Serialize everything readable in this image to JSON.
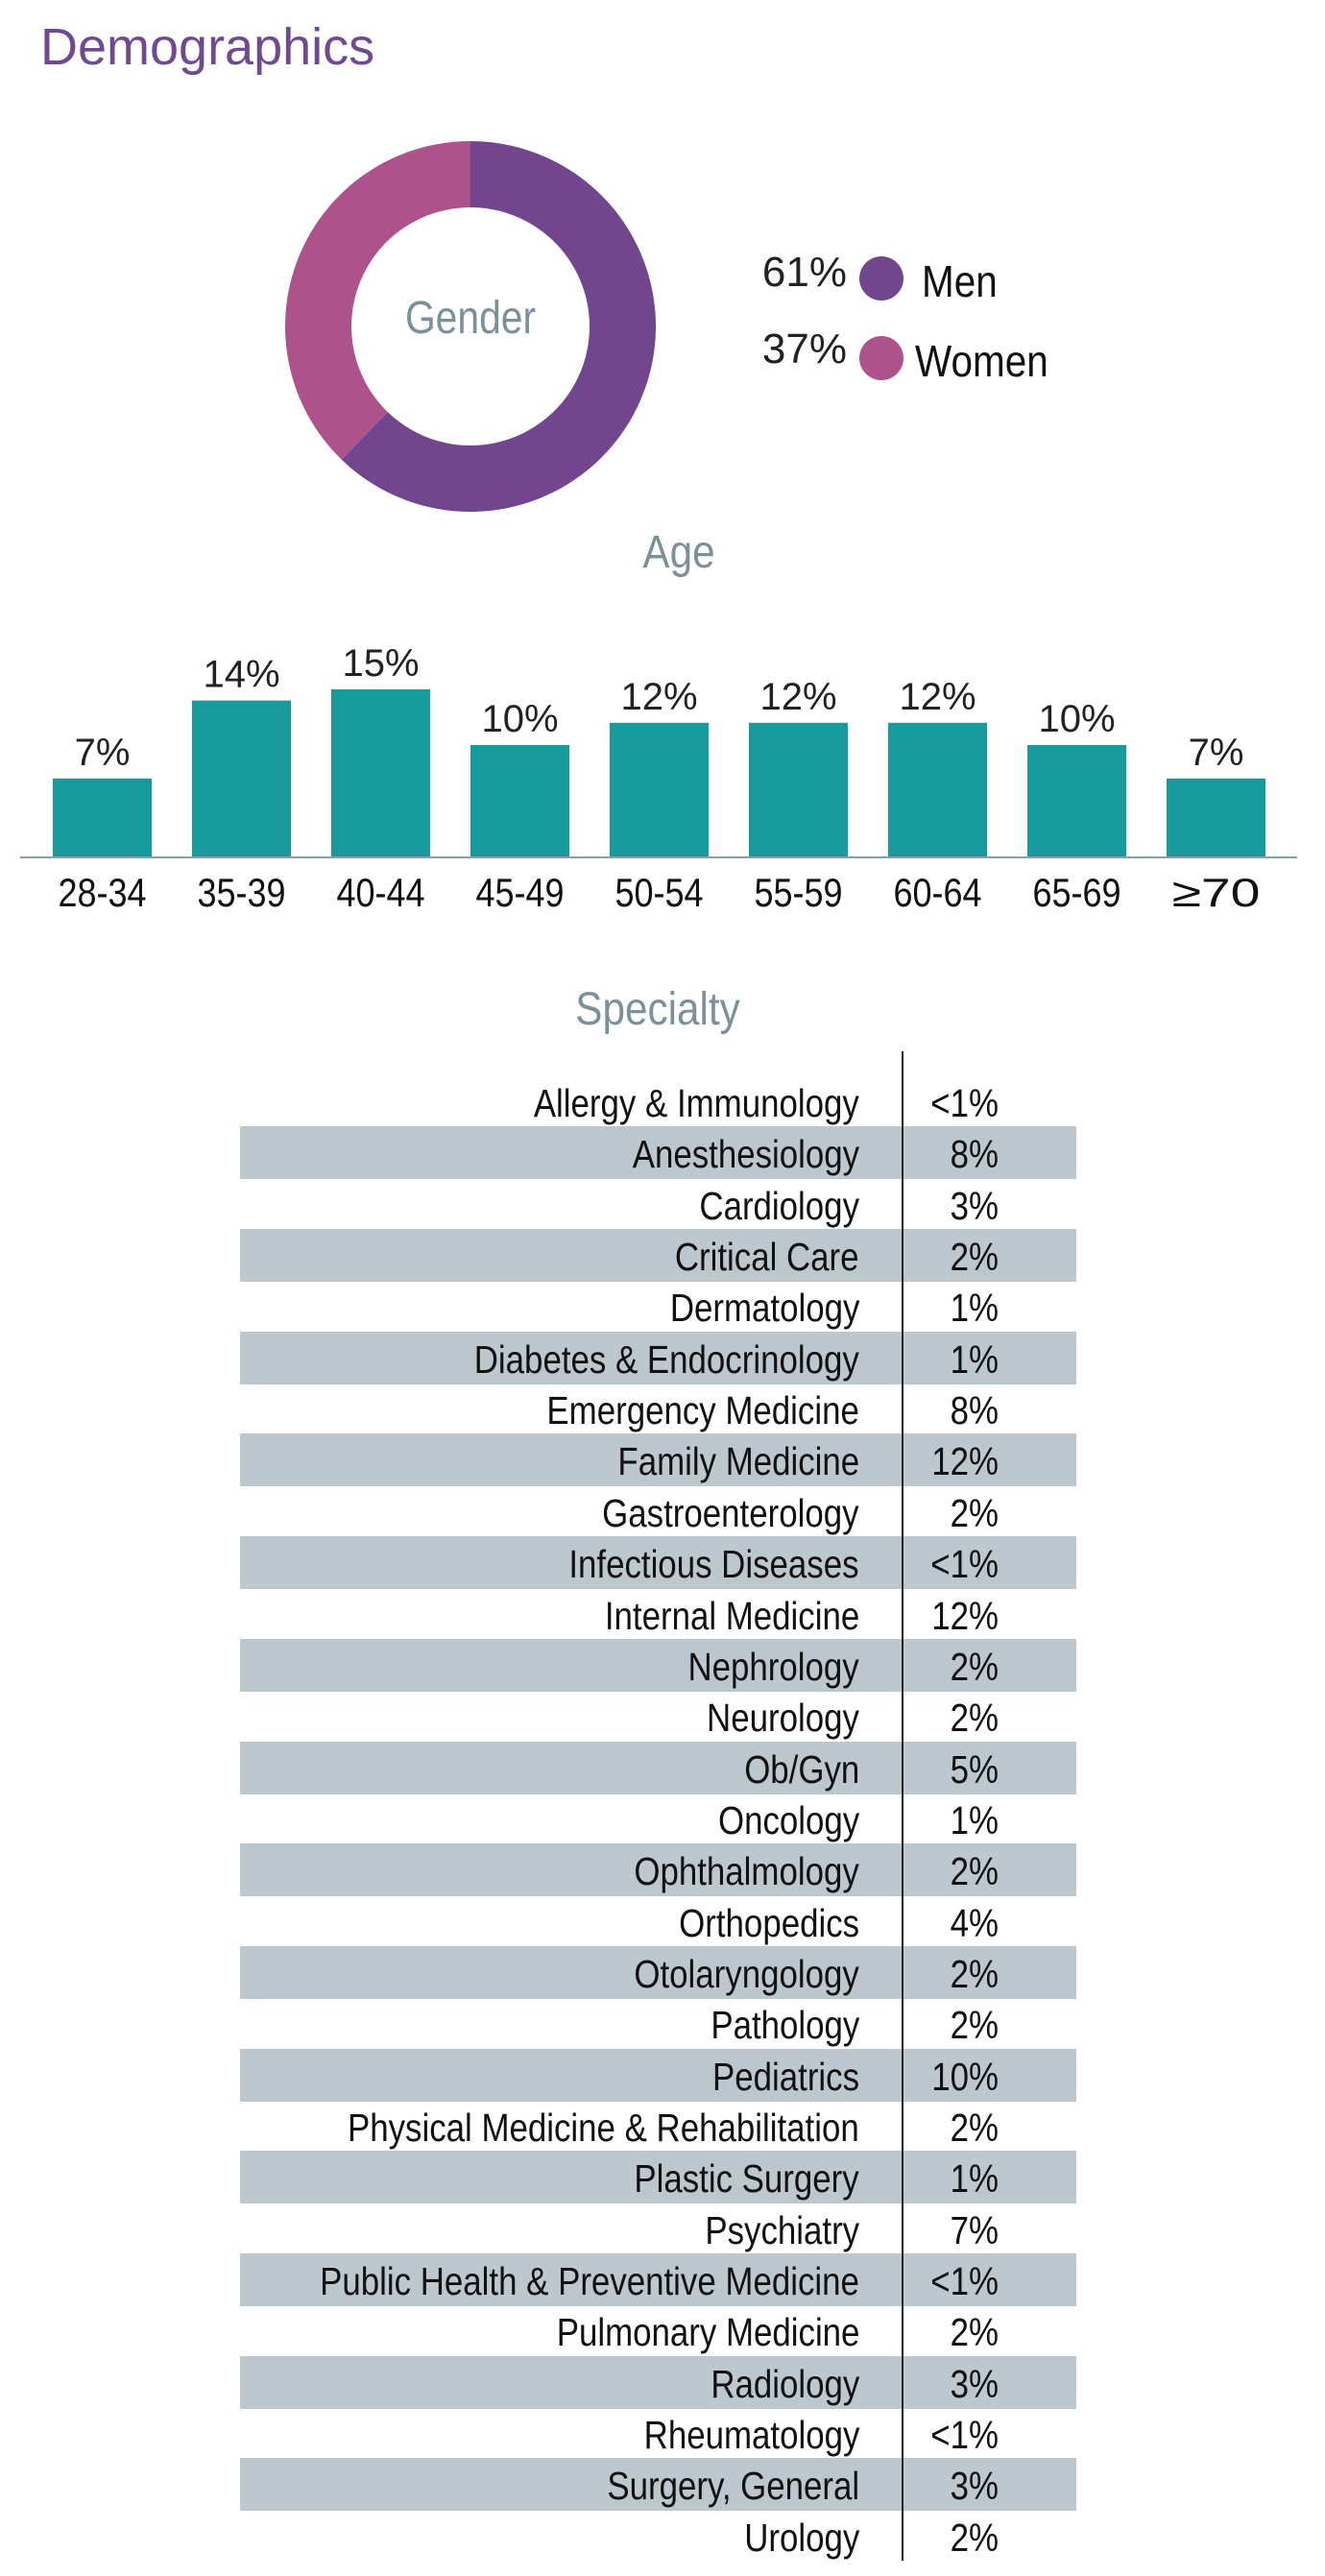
{
  "title": "Demographics",
  "gender": {
    "center_label": "Gender",
    "chart_data": {
      "type": "pie",
      "variant": "donut",
      "categories": [
        "Men",
        "Women"
      ],
      "values": [
        61,
        37
      ],
      "value_labels": [
        "61%",
        "37%"
      ],
      "colors": [
        "#71468f",
        "#ad528b"
      ],
      "legend": "right"
    }
  },
  "age": {
    "title": "Age",
    "chart_data": {
      "type": "bar",
      "categories": [
        "28-34",
        "35-39",
        "40-44",
        "45-49",
        "50-54",
        "55-59",
        "60-64",
        "65-69",
        "≥70"
      ],
      "values": [
        7,
        14,
        15,
        10,
        12,
        12,
        12,
        10,
        7
      ],
      "value_labels": [
        "7%",
        "14%",
        "15%",
        "10%",
        "12%",
        "12%",
        "12%",
        "10%",
        "7%"
      ],
      "ylim": [
        0,
        15
      ],
      "grid": false,
      "bar_color": "#179a9c",
      "axis_color": "#8aa0a8"
    }
  },
  "specialty": {
    "title": "Specialty",
    "stripe_color": "#bcc8cd",
    "rows": [
      {
        "label": "Allergy & Immunology",
        "value": "<1%"
      },
      {
        "label": "Anesthesiology",
        "value": "8%"
      },
      {
        "label": "Cardiology",
        "value": "3%"
      },
      {
        "label": "Critical Care",
        "value": "2%"
      },
      {
        "label": "Dermatology",
        "value": "1%"
      },
      {
        "label": "Diabetes & Endocrinology",
        "value": "1%"
      },
      {
        "label": "Emergency Medicine",
        "value": "8%"
      },
      {
        "label": "Family Medicine",
        "value": "12%"
      },
      {
        "label": "Gastroenterology",
        "value": "2%"
      },
      {
        "label": "Infectious Diseases",
        "value": "<1%"
      },
      {
        "label": "Internal Medicine",
        "value": "12%"
      },
      {
        "label": "Nephrology",
        "value": "2%"
      },
      {
        "label": "Neurology",
        "value": "2%"
      },
      {
        "label": "Ob/Gyn",
        "value": "5%"
      },
      {
        "label": "Oncology",
        "value": "1%"
      },
      {
        "label": "Ophthalmology",
        "value": "2%"
      },
      {
        "label": "Orthopedics",
        "value": "4%"
      },
      {
        "label": "Otolaryngology",
        "value": "2%"
      },
      {
        "label": "Pathology",
        "value": "2%"
      },
      {
        "label": "Pediatrics",
        "value": "10%"
      },
      {
        "label": "Physical Medicine & Rehabilitation",
        "value": "2%"
      },
      {
        "label": "Plastic Surgery",
        "value": "1%"
      },
      {
        "label": "Psychiatry",
        "value": "7%"
      },
      {
        "label": "Public Health & Preventive Medicine",
        "value": "<1%"
      },
      {
        "label": "Pulmonary Medicine",
        "value": "2%"
      },
      {
        "label": "Radiology",
        "value": "3%"
      },
      {
        "label": "Rheumatology",
        "value": "<1%"
      },
      {
        "label": "Surgery, General",
        "value": "3%"
      },
      {
        "label": "Urology",
        "value": "2%"
      }
    ]
  }
}
